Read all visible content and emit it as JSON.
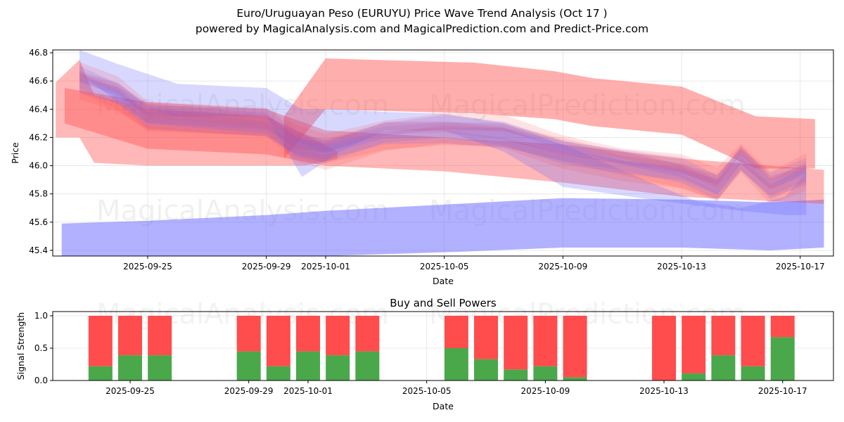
{
  "title_line1": "Euro/Uruguayan Peso (EURUYU) Price Wave Trend Analysis (Oct 17 )",
  "title_line2": "powered by MagicalAnalysis.com and MagicalPrediction.com and Predict-Price.com",
  "watermarks": [
    "MagicalAnalysis.com",
    "MagicalPrediction.com"
  ],
  "colors": {
    "red": "#ff4c4c",
    "blue": "#6464ff",
    "green": "#4aa84a",
    "buy": "#4aa84a",
    "sell": "#ff4c4c"
  },
  "chart_data": [
    {
      "type": "area",
      "title": "",
      "xlabel": "Date",
      "ylabel": "Price",
      "ylim": [
        45.36,
        46.82
      ],
      "yticks": [
        45.4,
        45.6,
        45.8,
        46.0,
        46.2,
        46.4,
        46.6,
        46.8
      ],
      "ytick_labels": [
        "45.4",
        "45.6",
        "45.8",
        "46.0",
        "46.2",
        "46.4",
        "46.6",
        "46.8"
      ],
      "x_origin_date": "2025-09-25",
      "xlim_days": [
        -3.2,
        23.1
      ],
      "xticks_days": [
        0,
        4,
        6,
        10,
        14,
        18,
        22
      ],
      "xtick_labels": [
        "2025-09-25",
        "2025-09-29",
        "2025-10-01",
        "2025-10-05",
        "2025-10-09",
        "2025-10-13",
        "2025-10-17"
      ],
      "grid": true,
      "bands": [
        {
          "color": "red",
          "opacity": 0.45,
          "days": [
            4.6,
            6.0,
            11.0,
            13.7,
            15.0,
            18.0,
            20.5,
            22.5
          ],
          "upper": [
            46.35,
            46.76,
            46.73,
            46.67,
            46.62,
            46.56,
            46.35,
            46.33
          ],
          "lower": [
            46.05,
            46.4,
            46.37,
            46.33,
            46.28,
            46.22,
            45.98,
            45.98
          ]
        },
        {
          "color": "blue",
          "opacity": 0.5,
          "days": [
            -2.9,
            0,
            4,
            6,
            10.5,
            14,
            18,
            21,
            22.8
          ],
          "upper": [
            45.59,
            45.61,
            45.65,
            45.68,
            45.73,
            45.77,
            45.76,
            45.74,
            45.76
          ],
          "lower": [
            45.33,
            45.33,
            45.34,
            45.36,
            45.39,
            45.42,
            45.42,
            45.4,
            45.42
          ]
        },
        {
          "color": "red",
          "opacity": 0.4,
          "days": [
            -3.1,
            -2.3,
            -1.8,
            0,
            4,
            5.3,
            6.4
          ],
          "upper": [
            46.59,
            46.75,
            46.5,
            46.4,
            46.35,
            46.22,
            46.1
          ],
          "lower": [
            46.2,
            46.2,
            46.02,
            46.0,
            46.0,
            46.0,
            46.05
          ]
        },
        {
          "color": "red",
          "opacity": 0.4,
          "days": [
            -2.8,
            0,
            4,
            6,
            10,
            14,
            18,
            22.8
          ],
          "upper": [
            46.55,
            46.45,
            46.4,
            46.25,
            46.2,
            46.15,
            46.05,
            45.97
          ],
          "lower": [
            46.3,
            46.12,
            46.08,
            46.0,
            45.96,
            45.88,
            45.78,
            45.73
          ]
        },
        {
          "color": "blue",
          "opacity": 0.25,
          "days": [
            -2.3,
            -1.0,
            1,
            4,
            5.2,
            6.5,
            8,
            10,
            12,
            14,
            17.3,
            18.5,
            20,
            21.5,
            22.2
          ],
          "upper": [
            46.82,
            46.72,
            46.58,
            46.55,
            46.4,
            46.4,
            46.38,
            46.37,
            46.3,
            46.15,
            45.85,
            45.75,
            45.7,
            45.78,
            45.95
          ],
          "lower": [
            46.65,
            46.45,
            46.35,
            46.35,
            45.92,
            46.1,
            46.25,
            46.25,
            46.1,
            45.85,
            45.75,
            45.72,
            45.68,
            45.65,
            45.65
          ]
        }
      ],
      "wave_center": {
        "days": [
          -2.3,
          -1.0,
          0,
          4,
          5.0,
          6,
          8,
          10,
          12,
          14,
          16,
          18,
          19.2,
          20,
          21,
          22.2
        ],
        "price": [
          46.6,
          46.5,
          46.35,
          46.3,
          46.15,
          46.1,
          46.22,
          46.25,
          46.22,
          46.1,
          46.02,
          45.95,
          45.85,
          46.05,
          45.85,
          45.95
        ]
      }
    },
    {
      "type": "bar",
      "title": "Buy and Sell Powers",
      "xlabel": "Date",
      "ylabel": "Signal Strength",
      "ylim": [
        0,
        1.05
      ],
      "yticks": [
        0,
        0.5,
        1.0
      ],
      "ytick_labels": [
        "0.0",
        "0.5",
        "1.0"
      ],
      "xtick_labels": [
        "2025-09-25",
        "2025-09-29",
        "2025-10-01",
        "2025-10-05",
        "2025-10-09",
        "2025-10-13",
        "2025-10-17"
      ],
      "xticks_days": [
        0,
        4,
        6,
        10,
        14,
        18,
        22
      ],
      "categories": [
        "2025-09-24",
        "2025-09-25",
        "2025-09-26",
        "2025-09-29",
        "2025-09-30",
        "2025-10-01",
        "2025-10-02",
        "2025-10-03",
        "2025-10-06",
        "2025-10-07",
        "2025-10-08",
        "2025-10-09",
        "2025-10-10",
        "2025-10-13",
        "2025-10-14",
        "2025-10-15",
        "2025-10-16",
        "2025-10-17"
      ],
      "days": [
        -1,
        0,
        1,
        4,
        5,
        6,
        7,
        8,
        11,
        12,
        13,
        14,
        15,
        18,
        19,
        20,
        21,
        22
      ],
      "series": [
        {
          "name": "Buy",
          "values": [
            0.22,
            0.39,
            0.39,
            0.45,
            0.22,
            0.45,
            0.39,
            0.45,
            0.5,
            0.33,
            0.17,
            0.22,
            0.05,
            0.0,
            0.11,
            0.39,
            0.22,
            0.67
          ]
        },
        {
          "name": "Sell",
          "values": [
            0.78,
            0.61,
            0.61,
            0.55,
            0.78,
            0.55,
            0.61,
            0.55,
            0.5,
            0.67,
            0.83,
            0.78,
            0.95,
            1.0,
            0.89,
            0.61,
            0.78,
            0.33
          ]
        }
      ]
    }
  ]
}
